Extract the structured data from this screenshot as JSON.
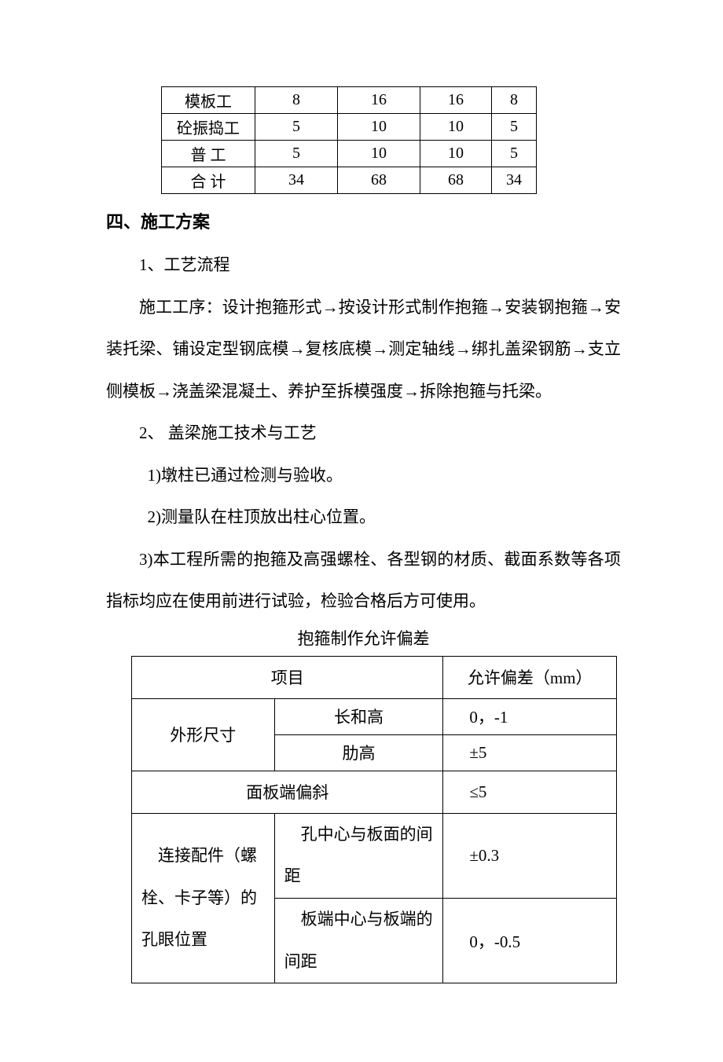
{
  "table1": {
    "rows": [
      [
        "模板工",
        "8",
        "16",
        "16",
        "8"
      ],
      [
        "砼振捣工",
        "5",
        "10",
        "10",
        "5"
      ],
      [
        "普 工",
        "5",
        "10",
        "10",
        "5"
      ],
      [
        "合 计",
        "34",
        "68",
        "68",
        "34"
      ]
    ]
  },
  "heading4": "四、施工方案",
  "p1": "1、工艺流程",
  "p2": "施工工序：设计抱箍形式→按设计形式制作抱箍→安装钢抱箍→安装托梁、铺设定型钢底模→复核底模→测定轴线→绑扎盖梁钢筋→支立侧模板→浇盖梁混凝土、养护至拆模强度→拆除抱箍与托梁。",
  "p3": "2、 盖梁施工技术与工艺",
  "p4": "1)墩柱已通过检测与验收。",
  "p5": "2)测量队在柱顶放出柱心位置。",
  "p6": "3)本工程所需的抱箍及高强螺栓、各型钢的材质、截面系数等各项指标均应在使用前进行试验，检验合格后方可使用。",
  "table2": {
    "title": "抱箍制作允许偏差",
    "head_item": "项目",
    "head_tol": "允许偏差（mm）",
    "r1c1": "外形尺寸",
    "r1c2a": "长和高",
    "r1c2b": "肋高",
    "r1v1": "0，-1",
    "r1v2": "±5",
    "r2": "面板端偏斜",
    "r2v": "≤5",
    "r3c1": "连接配件（螺栓、卡子等）的孔眼位置",
    "r3c2a": "孔中心与板面的间距",
    "r3c2b": "板端中心与板端的间距",
    "r3v1": "±0.3",
    "r3v2": "0，-0.5"
  }
}
